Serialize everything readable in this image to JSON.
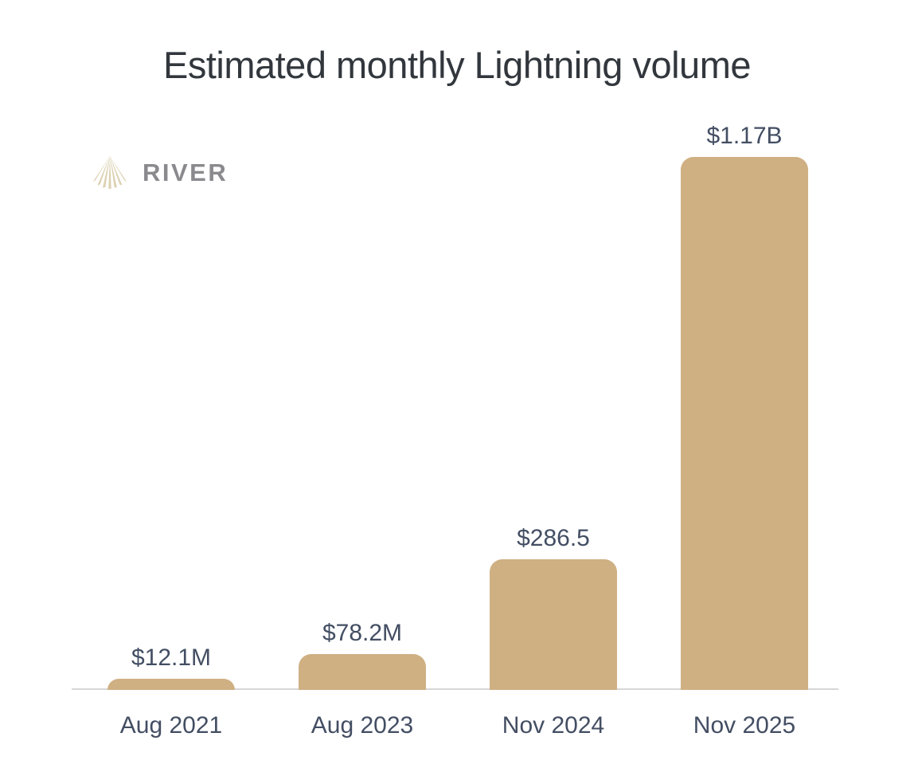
{
  "chart_data": {
    "type": "bar",
    "title": "Estimated monthly Lightning volume",
    "categories": [
      "Aug 2021",
      "Aug 2023",
      "Nov 2024",
      "Nov 2025"
    ],
    "values_usd_millions": [
      12.1,
      78.2,
      286.5,
      1170
    ],
    "value_labels": [
      "$12.1M",
      "$78.2M",
      "$286.5",
      "$1.17B"
    ],
    "ylim_usd_millions": [
      0,
      1170
    ],
    "grid": false,
    "legend": false,
    "bar_color": "#CFB083",
    "label_color": "#434E63",
    "axis_line_color": "#D7D7D7"
  },
  "logo": {
    "text": "RIVER",
    "icon": "river-rays-icon",
    "mark_color": "#DCD1B2",
    "text_color": "#8A8A8E"
  },
  "colors": {
    "background": "#FFFFFF",
    "title_text": "#32373D"
  }
}
